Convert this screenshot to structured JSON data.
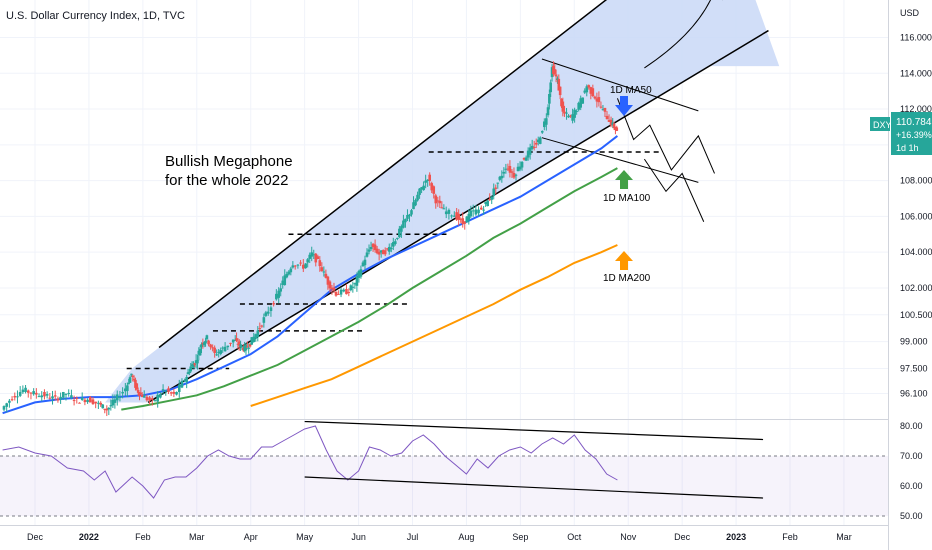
{
  "header": {
    "title": "U.S. Dollar Currency Index, 1D, TVC"
  },
  "colors": {
    "up": "#26a69a",
    "down": "#ef5350",
    "ma50": "#2962ff",
    "ma100": "#43a047",
    "ma200": "#ff9800",
    "rsi": "#7e57c2",
    "channel_fill": "#c9d8f7",
    "price_badge": "#26a69a"
  },
  "annotations": {
    "megaphone_line1": "Bullish Megaphone",
    "megaphone_line2": "for the whole 2022",
    "ma50_label": "1D MA50",
    "ma100_label": "1D MA100",
    "ma200_label": "1D MA200"
  },
  "price_badge": {
    "symbol": "DXY",
    "price": "110.784",
    "change": "+16.39%",
    "timeframe": "1d 1h",
    "value": 110.784
  },
  "chart_data": [
    {
      "type": "line",
      "name": "price",
      "currency": "USD",
      "y_axis_labels": [
        "116.000",
        "114.000",
        "112.000",
        "110.000",
        "108.000",
        "106.000",
        "104.000",
        "102.000",
        "100.500",
        "99.000",
        "97.500",
        "96.100"
      ],
      "y_axis_values": [
        116,
        114,
        112,
        110,
        108,
        106,
        104,
        102,
        100.5,
        99,
        97.5,
        96.1
      ],
      "x_axis_labels": [
        "Dec",
        "2022",
        "Feb",
        "Mar",
        "Apr",
        "May",
        "Jun",
        "Jul",
        "Aug",
        "Sep",
        "Oct",
        "Nov",
        "Dec",
        "2023",
        "Feb",
        "Mar"
      ],
      "x_axis_bold": [
        "2022",
        "2023"
      ],
      "months_index": [
        0,
        1,
        2,
        3,
        4,
        5,
        6,
        7,
        8,
        9,
        10,
        11,
        12,
        13,
        14,
        15
      ],
      "price_points": [
        [
          -0.6,
          95.2
        ],
        [
          -0.4,
          95.9
        ],
        [
          -0.2,
          96.3
        ],
        [
          0.0,
          96.1
        ],
        [
          0.2,
          96.0
        ],
        [
          0.4,
          95.8
        ],
        [
          0.6,
          96.1
        ],
        [
          0.8,
          95.7
        ],
        [
          1.0,
          95.8
        ],
        [
          1.2,
          95.5
        ],
        [
          1.35,
          95.2
        ],
        [
          1.5,
          95.7
        ],
        [
          1.7,
          96.4
        ],
        [
          1.8,
          97.2
        ],
        [
          1.9,
          96.3
        ],
        [
          2.0,
          96.0
        ],
        [
          2.2,
          95.6
        ],
        [
          2.4,
          96.3
        ],
        [
          2.6,
          96.0
        ],
        [
          2.8,
          96.9
        ],
        [
          2.9,
          97.6
        ],
        [
          3.0,
          97.9
        ],
        [
          3.1,
          98.9
        ],
        [
          3.2,
          99.2
        ],
        [
          3.35,
          98.3
        ],
        [
          3.5,
          98.6
        ],
        [
          3.7,
          99.1
        ],
        [
          3.8,
          98.8
        ],
        [
          3.9,
          98.6
        ],
        [
          4.0,
          98.9
        ],
        [
          4.15,
          99.6
        ],
        [
          4.3,
          100.5
        ],
        [
          4.5,
          101.5
        ],
        [
          4.65,
          102.6
        ],
        [
          4.8,
          103.4
        ],
        [
          5.0,
          103.2
        ],
        [
          5.15,
          103.9
        ],
        [
          5.3,
          103.3
        ],
        [
          5.45,
          102.3
        ],
        [
          5.6,
          101.7
        ],
        [
          5.8,
          101.8
        ],
        [
          5.95,
          102.2
        ],
        [
          6.1,
          103.4
        ],
        [
          6.25,
          104.4
        ],
        [
          6.4,
          103.9
        ],
        [
          6.55,
          104.1
        ],
        [
          6.7,
          104.7
        ],
        [
          6.85,
          105.6
        ],
        [
          7.0,
          106.4
        ],
        [
          7.15,
          107.4
        ],
        [
          7.3,
          108.2
        ],
        [
          7.45,
          106.9
        ],
        [
          7.6,
          106.3
        ],
        [
          7.8,
          106.1
        ],
        [
          7.95,
          105.6
        ],
        [
          8.1,
          106.2
        ],
        [
          8.3,
          106.4
        ],
        [
          8.45,
          107.0
        ],
        [
          8.6,
          107.9
        ],
        [
          8.75,
          108.8
        ],
        [
          8.9,
          108.3
        ],
        [
          9.05,
          109.1
        ],
        [
          9.2,
          109.7
        ],
        [
          9.35,
          110.2
        ],
        [
          9.5,
          111.6
        ],
        [
          9.6,
          114.3
        ],
        [
          9.7,
          113.6
        ],
        [
          9.8,
          111.8
        ],
        [
          9.95,
          111.5
        ],
        [
          10.1,
          112.2
        ],
        [
          10.25,
          113.3
        ],
        [
          10.4,
          112.7
        ],
        [
          10.55,
          111.9
        ],
        [
          10.7,
          111.2
        ],
        [
          10.8,
          110.8
        ]
      ],
      "ma50_points": [
        [
          -0.6,
          95.0
        ],
        [
          0.0,
          95.6
        ],
        [
          0.5,
          95.8
        ],
        [
          1.0,
          95.9
        ],
        [
          1.5,
          95.9
        ],
        [
          2.0,
          96.0
        ],
        [
          2.5,
          96.3
        ],
        [
          3.0,
          96.9
        ],
        [
          3.5,
          97.6
        ],
        [
          4.0,
          98.3
        ],
        [
          4.5,
          99.3
        ],
        [
          5.0,
          100.6
        ],
        [
          5.5,
          101.9
        ],
        [
          6.0,
          102.8
        ],
        [
          6.5,
          103.6
        ],
        [
          7.0,
          104.3
        ],
        [
          7.5,
          105.0
        ],
        [
          8.0,
          105.7
        ],
        [
          8.5,
          106.4
        ],
        [
          9.0,
          107.1
        ],
        [
          9.5,
          108.0
        ],
        [
          10.0,
          108.9
        ],
        [
          10.5,
          109.8
        ],
        [
          10.8,
          110.5
        ]
      ],
      "ma100_points": [
        [
          1.6,
          95.2
        ],
        [
          2.0,
          95.4
        ],
        [
          2.5,
          95.7
        ],
        [
          3.0,
          96.0
        ],
        [
          3.5,
          96.5
        ],
        [
          4.0,
          97.1
        ],
        [
          4.5,
          97.7
        ],
        [
          5.0,
          98.5
        ],
        [
          5.5,
          99.3
        ],
        [
          6.0,
          100.1
        ],
        [
          6.5,
          101.0
        ],
        [
          7.0,
          102.0
        ],
        [
          7.5,
          102.9
        ],
        [
          8.0,
          103.8
        ],
        [
          8.5,
          104.8
        ],
        [
          9.0,
          105.6
        ],
        [
          9.5,
          106.5
        ],
        [
          10.0,
          107.4
        ],
        [
          10.5,
          108.2
        ],
        [
          10.8,
          108.7
        ]
      ],
      "ma200_points": [
        [
          4.0,
          95.4
        ],
        [
          4.5,
          95.9
        ],
        [
          5.0,
          96.4
        ],
        [
          5.5,
          96.9
        ],
        [
          6.0,
          97.6
        ],
        [
          6.5,
          98.3
        ],
        [
          7.0,
          99.0
        ],
        [
          7.5,
          99.7
        ],
        [
          8.0,
          100.4
        ],
        [
          8.5,
          101.1
        ],
        [
          9.0,
          101.9
        ],
        [
          9.5,
          102.6
        ],
        [
          10.0,
          103.4
        ],
        [
          10.5,
          104.0
        ],
        [
          10.8,
          104.4
        ]
      ],
      "channel_top": [
        [
          1.8,
          97.5
        ],
        [
          10.8,
          118.6
        ]
      ],
      "channel_bottom": [
        [
          2.1,
          95.6
        ],
        [
          12.5,
          114.4
        ]
      ],
      "horizontal_levels": [
        {
          "x1": 1.7,
          "x2": 3.6,
          "value": 97.5
        },
        {
          "x1": 3.3,
          "x2": 6.1,
          "value": 99.6
        },
        {
          "x1": 3.8,
          "x2": 6.9,
          "value": 101.1
        },
        {
          "x1": 4.7,
          "x2": 7.7,
          "value": 105.0
        },
        {
          "x1": 7.3,
          "x2": 11.6,
          "value": 109.6
        }
      ]
    },
    {
      "type": "line",
      "name": "rsi",
      "y_axis_labels": [
        "80.00",
        "70.00",
        "60.00",
        "50.00"
      ],
      "y_axis_values": [
        80,
        70,
        60,
        50
      ],
      "ylim": [
        48.5,
        84
      ],
      "overbought": 70,
      "oversold": 50,
      "rsi_points": [
        [
          -0.6,
          72
        ],
        [
          -0.3,
          73
        ],
        [
          0.0,
          71
        ],
        [
          0.3,
          70
        ],
        [
          0.6,
          66
        ],
        [
          0.9,
          65
        ],
        [
          1.1,
          62
        ],
        [
          1.3,
          65
        ],
        [
          1.5,
          58
        ],
        [
          1.8,
          63
        ],
        [
          2.0,
          60
        ],
        [
          2.2,
          56
        ],
        [
          2.4,
          62
        ],
        [
          2.6,
          63
        ],
        [
          2.8,
          63
        ],
        [
          3.0,
          66
        ],
        [
          3.2,
          70
        ],
        [
          3.4,
          72
        ],
        [
          3.6,
          70
        ],
        [
          3.8,
          69
        ],
        [
          4.0,
          69
        ],
        [
          4.2,
          73
        ],
        [
          4.4,
          73
        ],
        [
          4.6,
          75
        ],
        [
          4.8,
          77
        ],
        [
          5.0,
          79
        ],
        [
          5.2,
          80
        ],
        [
          5.4,
          72
        ],
        [
          5.6,
          65
        ],
        [
          5.8,
          62
        ],
        [
          6.0,
          65
        ],
        [
          6.2,
          73
        ],
        [
          6.4,
          72
        ],
        [
          6.6,
          70
        ],
        [
          6.8,
          71
        ],
        [
          7.0,
          75
        ],
        [
          7.2,
          77
        ],
        [
          7.4,
          74
        ],
        [
          7.6,
          70
        ],
        [
          7.8,
          67
        ],
        [
          8.0,
          64
        ],
        [
          8.2,
          69
        ],
        [
          8.4,
          66
        ],
        [
          8.6,
          70
        ],
        [
          8.8,
          72
        ],
        [
          9.0,
          73
        ],
        [
          9.2,
          71
        ],
        [
          9.4,
          74
        ],
        [
          9.6,
          76
        ],
        [
          9.8,
          74
        ],
        [
          10.0,
          77
        ],
        [
          10.2,
          72
        ],
        [
          10.4,
          69
        ],
        [
          10.6,
          64
        ],
        [
          10.8,
          62
        ]
      ],
      "trend_top": [
        [
          5.0,
          81.5
        ],
        [
          13.5,
          75.5
        ]
      ],
      "trend_bottom": [
        [
          5.0,
          63.0
        ],
        [
          13.5,
          56.0
        ]
      ]
    }
  ]
}
